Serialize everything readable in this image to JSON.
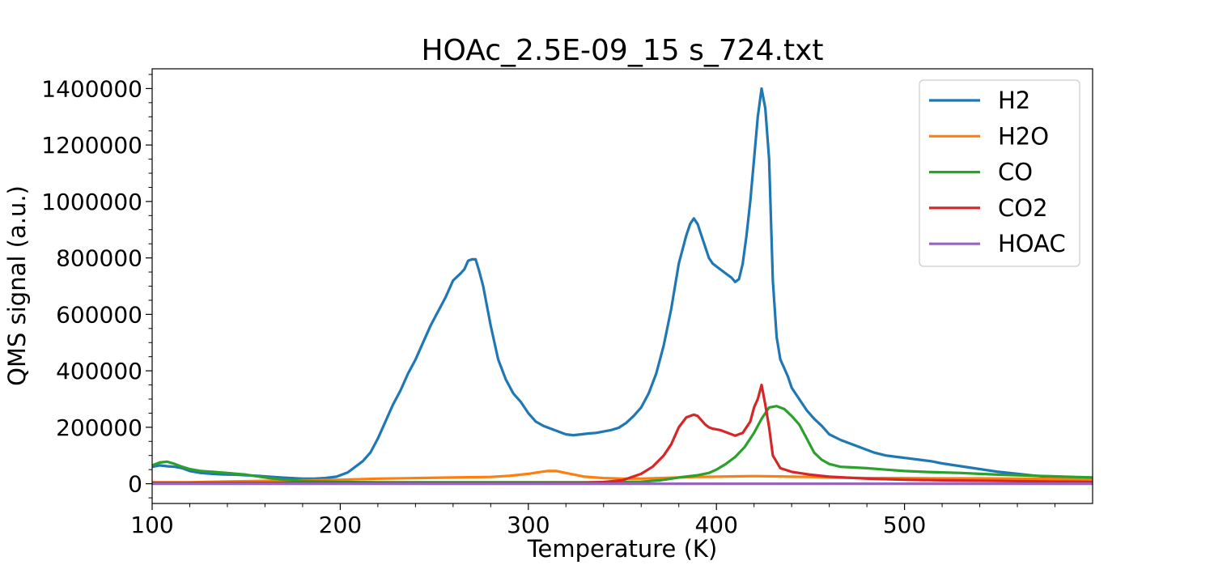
{
  "chart_data": {
    "type": "line",
    "title": "HOAc_2.5E-09_15 s_724.txt",
    "xlabel": "Temperature (K)",
    "ylabel": "QMS signal (a.u.)",
    "xlim": [
      100,
      600
    ],
    "ylim": [
      -70000,
      1470000
    ],
    "xticks": [
      100,
      200,
      300,
      400,
      500
    ],
    "xtick_labels": [
      "100",
      "200",
      "300",
      "400",
      "500"
    ],
    "yticks": [
      0,
      200000,
      400000,
      600000,
      800000,
      1000000,
      1200000,
      1400000
    ],
    "ytick_labels": [
      "0",
      "200000",
      "400000",
      "600000",
      "800000",
      "1000000",
      "1200000",
      "1400000"
    ],
    "grid": false,
    "legend": "top-right",
    "series": [
      {
        "name": "H2",
        "color": "#1f77b4",
        "x": [
          100,
          104,
          108,
          112,
          116,
          120,
          126,
          132,
          138,
          144,
          150,
          156,
          162,
          168,
          174,
          180,
          186,
          192,
          198,
          204,
          208,
          212,
          216,
          220,
          224,
          228,
          232,
          236,
          240,
          244,
          248,
          252,
          256,
          260,
          264,
          266,
          268,
          270,
          272,
          274,
          276,
          280,
          284,
          288,
          292,
          296,
          300,
          304,
          308,
          312,
          316,
          320,
          324,
          328,
          332,
          336,
          340,
          344,
          348,
          352,
          356,
          360,
          364,
          368,
          372,
          376,
          380,
          384,
          386,
          388,
          390,
          392,
          394,
          396,
          398,
          400,
          402,
          404,
          406,
          408,
          410,
          412,
          414,
          416,
          418,
          420,
          422,
          424,
          426,
          428,
          430,
          432,
          434,
          436,
          438,
          440,
          444,
          448,
          452,
          456,
          460,
          466,
          472,
          478,
          484,
          490,
          496,
          502,
          508,
          514,
          520,
          530,
          540,
          550,
          560,
          570,
          580,
          590,
          600
        ],
        "y": [
          60000,
          65000,
          62000,
          60000,
          55000,
          45000,
          38000,
          35000,
          33000,
          32000,
          30000,
          28000,
          25000,
          22000,
          20000,
          18000,
          18000,
          20000,
          25000,
          40000,
          60000,
          80000,
          110000,
          160000,
          220000,
          280000,
          330000,
          390000,
          440000,
          500000,
          560000,
          610000,
          660000,
          720000,
          745000,
          760000,
          790000,
          795000,
          795000,
          750000,
          700000,
          560000,
          440000,
          370000,
          320000,
          290000,
          250000,
          220000,
          205000,
          195000,
          185000,
          175000,
          172000,
          175000,
          178000,
          180000,
          185000,
          190000,
          198000,
          215000,
          240000,
          270000,
          320000,
          390000,
          490000,
          620000,
          780000,
          880000,
          920000,
          940000,
          920000,
          880000,
          840000,
          800000,
          780000,
          770000,
          760000,
          750000,
          740000,
          730000,
          715000,
          725000,
          780000,
          880000,
          1000000,
          1150000,
          1300000,
          1400000,
          1330000,
          1150000,
          720000,
          520000,
          440000,
          410000,
          380000,
          340000,
          300000,
          260000,
          230000,
          205000,
          175000,
          155000,
          140000,
          125000,
          110000,
          100000,
          95000,
          90000,
          85000,
          80000,
          72000,
          62000,
          52000,
          42000,
          35000,
          28000,
          22000,
          15000,
          10000
        ]
      },
      {
        "name": "H2O",
        "color": "#ff7f0e",
        "x": [
          100,
          120,
          140,
          160,
          180,
          200,
          220,
          240,
          260,
          280,
          290,
          300,
          305,
          310,
          315,
          320,
          330,
          340,
          350,
          360,
          370,
          380,
          390,
          400,
          410,
          420,
          430,
          440,
          450,
          460,
          480,
          500,
          520,
          540,
          560,
          580,
          600
        ],
        "y": [
          5000,
          5000,
          8000,
          10000,
          12000,
          14000,
          18000,
          20000,
          22000,
          24000,
          28000,
          35000,
          40000,
          45000,
          45000,
          38000,
          25000,
          20000,
          18000,
          18000,
          20000,
          22000,
          24000,
          25000,
          26000,
          27000,
          26000,
          25000,
          24000,
          22000,
          20000,
          20000,
          19000,
          19000,
          18000,
          17000,
          15000
        ]
      },
      {
        "name": "CO",
        "color": "#2ca02c",
        "x": [
          100,
          104,
          108,
          112,
          116,
          120,
          126,
          132,
          140,
          150,
          160,
          170,
          180,
          200,
          220,
          240,
          260,
          280,
          300,
          320,
          340,
          360,
          370,
          380,
          390,
          396,
          400,
          405,
          410,
          415,
          420,
          424,
          428,
          432,
          436,
          440,
          444,
          448,
          452,
          456,
          460,
          466,
          472,
          480,
          490,
          500,
          510,
          520,
          530,
          540,
          550,
          560,
          570,
          580,
          590,
          600
        ],
        "y": [
          65000,
          75000,
          78000,
          70000,
          60000,
          52000,
          45000,
          42000,
          38000,
          32000,
          22000,
          14000,
          10000,
          6000,
          5000,
          5000,
          5000,
          5000,
          5000,
          5000,
          5000,
          7000,
          12000,
          22000,
          30000,
          38000,
          50000,
          70000,
          95000,
          130000,
          180000,
          230000,
          270000,
          275000,
          265000,
          240000,
          210000,
          160000,
          110000,
          85000,
          70000,
          60000,
          58000,
          55000,
          50000,
          45000,
          42000,
          40000,
          38000,
          35000,
          32000,
          30000,
          28000,
          26000,
          24000,
          22000
        ]
      },
      {
        "name": "CO2",
        "color": "#d62728",
        "x": [
          100,
          150,
          200,
          250,
          300,
          330,
          340,
          350,
          360,
          366,
          372,
          376,
          380,
          384,
          388,
          390,
          392,
          394,
          396,
          398,
          402,
          406,
          410,
          414,
          418,
          420,
          422,
          424,
          426,
          428,
          430,
          434,
          440,
          450,
          460,
          480,
          500,
          520,
          550,
          580,
          600
        ],
        "y": [
          3000,
          3000,
          3000,
          3000,
          3000,
          4000,
          6000,
          12000,
          35000,
          60000,
          100000,
          140000,
          200000,
          235000,
          245000,
          240000,
          225000,
          210000,
          200000,
          195000,
          190000,
          180000,
          170000,
          180000,
          220000,
          270000,
          300000,
          350000,
          280000,
          200000,
          100000,
          55000,
          42000,
          32000,
          25000,
          18000,
          14000,
          12000,
          10000,
          8000,
          6000
        ]
      },
      {
        "name": "HOAC",
        "color": "#9467bd",
        "x": [
          100,
          200,
          300,
          400,
          500,
          600
        ],
        "y": [
          0,
          0,
          0,
          0,
          0,
          0
        ]
      }
    ]
  }
}
